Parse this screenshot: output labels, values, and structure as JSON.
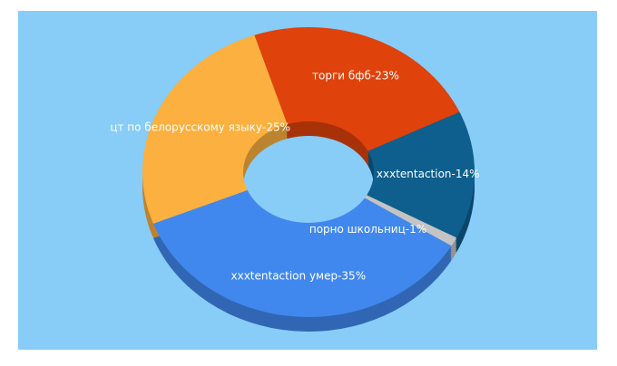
{
  "chart_data": {
    "type": "donut3d",
    "values": [
      23,
      14,
      1,
      35,
      25
    ],
    "value_labels": [
      "торги бфб-23%",
      "xxxtentaction-14%",
      "порно школьниц-1%",
      "xxxtentaction умер-35%",
      "цт по белорусскому языку-25%"
    ],
    "colors": [
      "#e0420b",
      "#0e5f8e",
      "#c4c4c4",
      "#4088ee",
      "#fbb03f"
    ]
  }
}
